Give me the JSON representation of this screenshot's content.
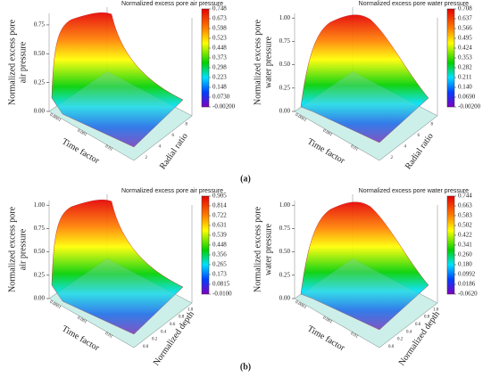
{
  "chart_data": [
    {
      "type": "surface",
      "title": "Normalized excess pore air pressure",
      "zlabel": [
        "Normalized excess pore",
        "air pressure"
      ],
      "xlabel": "Time factor",
      "ylabel": "Radial ratio",
      "xticks": [
        "0.0001",
        "0.001",
        "0.01"
      ],
      "yticks": [
        "2",
        "4",
        "6",
        "8"
      ],
      "zlim": [
        0,
        0.85
      ],
      "zticks": [
        {
          "value": 0,
          "label": "0.00"
        },
        0.25,
        {
          "value": 0.5,
          "label": "0.50"
        },
        0.75
      ],
      "clim": [
        -0.002,
        0.748
      ],
      "cticks": [
        0.748,
        0.673,
        0.598,
        0.523,
        0.448,
        0.373,
        0.298,
        0.223,
        0.148,
        {
          "value": 0.073,
          "label": "0.0730"
        },
        {
          "value": -0.002,
          "label": "-0.00200"
        }
      ]
    },
    {
      "type": "surface",
      "title": "Normalized excess pore water pressure",
      "zlabel": [
        "Normalized excess pore",
        "water pressure"
      ],
      "xlabel": "Time factor",
      "ylabel": "Radial ratio",
      "xticks": [
        "0.0001",
        "0.001",
        "0.01"
      ],
      "yticks": [
        "2",
        "4",
        "6",
        "8"
      ],
      "zlim": [
        0,
        1.05
      ],
      "zticks": [
        {
          "value": 0,
          "label": "0.00"
        },
        0.25,
        {
          "value": 0.5,
          "label": "0.50"
        },
        0.75,
        {
          "value": 1,
          "label": "1.00"
        }
      ],
      "clim": [
        -0.002,
        0.708
      ],
      "cticks": [
        0.708,
        0.637,
        0.566,
        0.495,
        0.424,
        0.353,
        0.282,
        0.211,
        {
          "value": 0.14,
          "label": "0.140"
        },
        {
          "value": 0.069,
          "label": "0.0690"
        },
        {
          "value": -0.002,
          "label": "-0.00200"
        }
      ]
    },
    {
      "type": "surface",
      "title": "Normalized excess pore air pressure",
      "zlabel": [
        "Normalized excess pore",
        "air pressure"
      ],
      "xlabel": "Time factor",
      "ylabel": "Normalized depth",
      "xticks": [
        "0.0001",
        "0.001",
        "0.01"
      ],
      "yticks": [
        "0.0",
        "0.2",
        "0.4",
        "0.6",
        "0.8",
        "1.0"
      ],
      "zlim": [
        0,
        1.05
      ],
      "zticks": [
        {
          "value": 0,
          "label": "0.00"
        },
        0.25,
        {
          "value": 0.5,
          "label": "0.50"
        },
        0.75,
        {
          "value": 1,
          "label": "1.00"
        }
      ],
      "clim": [
        -0.01,
        0.905
      ],
      "cticks": [
        0.905,
        0.814,
        0.722,
        0.631,
        0.539,
        0.448,
        0.356,
        0.265,
        0.173,
        0.0815,
        {
          "value": -0.01,
          "label": "-0.0100"
        }
      ]
    },
    {
      "type": "surface",
      "title": "Normalized excess pore water pressure",
      "zlabel": [
        "Normalized excess pore",
        "water pressure"
      ],
      "xlabel": "Time factor",
      "ylabel": "Normalized depth",
      "xticks": [
        "0.0001",
        "0.001",
        "0.01"
      ],
      "yticks": [
        "0.0",
        "0.2",
        "0.4",
        "0.6",
        "0.8",
        "1.0"
      ],
      "zlim": [
        0,
        1.05
      ],
      "zticks": [
        {
          "value": 0,
          "label": "0.00"
        },
        0.25,
        {
          "value": 0.5,
          "label": "0.50"
        },
        0.75,
        {
          "value": 1,
          "label": "1.00"
        }
      ],
      "clim": [
        -0.062,
        0.744
      ],
      "cticks": [
        0.744,
        0.663,
        0.583,
        0.502,
        0.422,
        0.341,
        {
          "value": 0.26,
          "label": "0.260"
        },
        {
          "value": 0.18,
          "label": "0.180"
        },
        0.0992,
        0.0186,
        {
          "value": -0.062,
          "label": "-0.0620"
        }
      ]
    }
  ],
  "panel_labels": [
    "(a)",
    "(b)"
  ]
}
